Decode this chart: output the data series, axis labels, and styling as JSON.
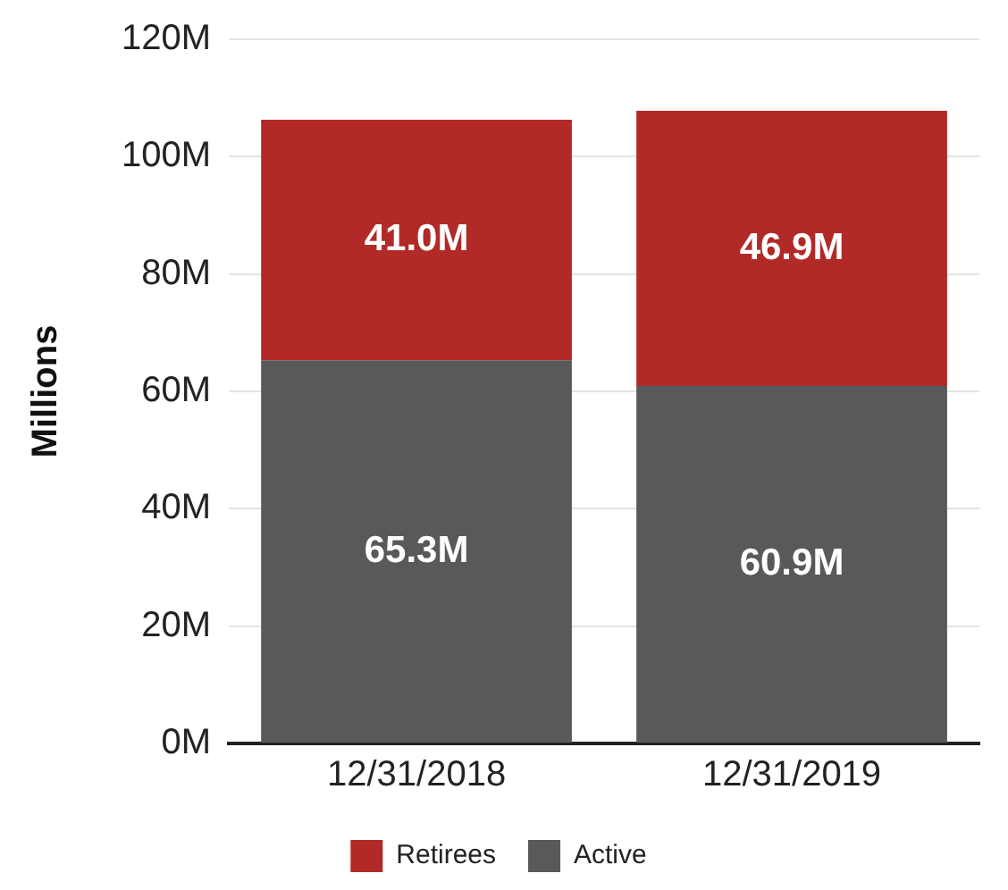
{
  "chart_data": {
    "type": "bar",
    "ylabel": "Millions",
    "categories": [
      "12/31/2018",
      "12/31/2019"
    ],
    "stacked": true,
    "series": [
      {
        "name": "Active",
        "color": "#58595b",
        "values": [
          65.3,
          60.9
        ],
        "value_labels": [
          "65.3M",
          "60.9M"
        ]
      },
      {
        "name": "Retirees",
        "color": "#b22a27",
        "values": [
          41.0,
          46.9
        ],
        "value_labels": [
          "41.0M",
          "46.9M"
        ]
      }
    ],
    "ylim": [
      0,
      120
    ],
    "yticks": [
      {
        "value": 0,
        "label": "0M"
      },
      {
        "value": 20,
        "label": "20M"
      },
      {
        "value": 40,
        "label": "40M"
      },
      {
        "value": 60,
        "label": "60M"
      },
      {
        "value": 80,
        "label": "80M"
      },
      {
        "value": 100,
        "label": "100M"
      },
      {
        "value": 120,
        "label": "120M"
      }
    ],
    "grid": "y",
    "legend": "bottom"
  }
}
